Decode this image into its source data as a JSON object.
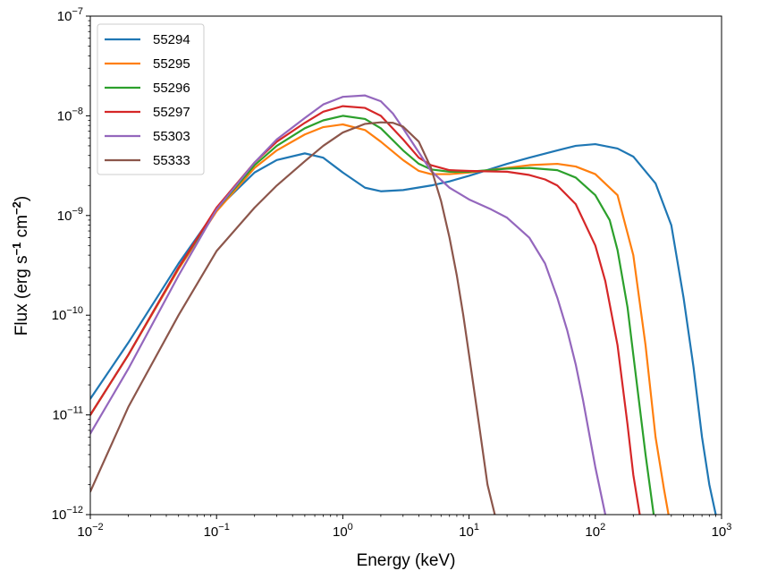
{
  "chart_data": {
    "type": "line",
    "x_scale": "log",
    "y_scale": "log",
    "xlim": [
      0.01,
      1000
    ],
    "ylim": [
      1e-12,
      1e-07
    ],
    "xlabel": "Energy (keV)",
    "ylabel": "Flux (erg s^-1 cm^-2)",
    "ylabel_parts": [
      "Flux (erg s",
      "−1",
      " cm",
      "−2",
      ")"
    ],
    "x_ticks": [
      {
        "value": 0.01,
        "base": "10",
        "exp": "−2"
      },
      {
        "value": 0.1,
        "base": "10",
        "exp": "−1"
      },
      {
        "value": 1,
        "base": "10",
        "exp": "0"
      },
      {
        "value": 10,
        "base": "10",
        "exp": "1"
      },
      {
        "value": 100,
        "base": "10",
        "exp": "2"
      },
      {
        "value": 1000,
        "base": "10",
        "exp": "3"
      }
    ],
    "y_ticks": [
      {
        "value": 1e-12,
        "base": "10",
        "exp": "−12"
      },
      {
        "value": 1e-11,
        "base": "10",
        "exp": "−11"
      },
      {
        "value": 1e-10,
        "base": "10",
        "exp": "−10"
      },
      {
        "value": 1e-09,
        "base": "10",
        "exp": "−9"
      },
      {
        "value": 1e-08,
        "base": "10",
        "exp": "−8"
      },
      {
        "value": 1e-07,
        "base": "10",
        "exp": "−7"
      }
    ],
    "grid": false,
    "legend_position": "top-left",
    "series": [
      {
        "name": "55294",
        "color": "#1f77b4",
        "x": [
          0.01,
          0.02,
          0.05,
          0.1,
          0.2,
          0.3,
          0.5,
          0.7,
          1.0,
          1.5,
          2.0,
          3.0,
          5.0,
          7.0,
          10,
          20,
          30,
          50,
          70,
          100,
          150,
          200,
          300,
          400,
          500,
          600,
          700,
          800,
          900
        ],
        "y": [
          1.45e-11,
          5.3e-11,
          3.3e-10,
          1.15e-09,
          2.7e-09,
          3.6e-09,
          4.2e-09,
          3.8e-09,
          2.7e-09,
          1.9e-09,
          1.75e-09,
          1.8e-09,
          2e-09,
          2.2e-09,
          2.5e-09,
          3.3e-09,
          3.8e-09,
          4.5e-09,
          5e-09,
          5.2e-09,
          4.7e-09,
          3.9e-09,
          2.1e-09,
          8e-10,
          1.5e-10,
          3e-11,
          6e-12,
          2e-12,
          1e-12
        ]
      },
      {
        "name": "55295",
        "color": "#ff7f0e",
        "x": [
          0.01,
          0.02,
          0.05,
          0.1,
          0.2,
          0.3,
          0.5,
          0.7,
          1.0,
          1.5,
          2.0,
          3.0,
          4.0,
          5.0,
          7.0,
          10,
          20,
          30,
          50,
          70,
          100,
          150,
          200,
          250,
          300,
          350,
          380
        ],
        "y": [
          1e-11,
          4e-11,
          2.9e-10,
          1.1e-09,
          3e-09,
          4.5e-09,
          6.5e-09,
          7.7e-09,
          8.2e-09,
          7.2e-09,
          5.5e-09,
          3.6e-09,
          2.8e-09,
          2.6e-09,
          2.6e-09,
          2.7e-09,
          3e-09,
          3.2e-09,
          3.3e-09,
          3.1e-09,
          2.6e-09,
          1.6e-09,
          4e-10,
          5e-11,
          6e-12,
          1.8e-12,
          1e-12
        ]
      },
      {
        "name": "55296",
        "color": "#2ca02c",
        "x": [
          0.01,
          0.02,
          0.05,
          0.1,
          0.2,
          0.3,
          0.5,
          0.7,
          1.0,
          1.5,
          2.0,
          3.0,
          4.0,
          5.0,
          7.0,
          10,
          20,
          30,
          50,
          70,
          100,
          130,
          150,
          180,
          200,
          250,
          290
        ],
        "y": [
          1e-11,
          4e-11,
          3e-10,
          1.15e-09,
          3.2e-09,
          5e-09,
          7.5e-09,
          9e-09,
          1e-08,
          9.3e-09,
          7.5e-09,
          4.5e-09,
          3.3e-09,
          2.9e-09,
          2.75e-09,
          2.75e-09,
          2.95e-09,
          3e-09,
          2.85e-09,
          2.4e-09,
          1.6e-09,
          9e-10,
          4.5e-10,
          1.2e-10,
          4e-11,
          4e-12,
          1e-12
        ]
      },
      {
        "name": "55297",
        "color": "#d62728",
        "x": [
          0.01,
          0.02,
          0.05,
          0.1,
          0.2,
          0.3,
          0.5,
          0.7,
          1.0,
          1.5,
          2.0,
          3.0,
          4.0,
          5.0,
          7.0,
          10,
          20,
          30,
          40,
          50,
          70,
          100,
          120,
          150,
          180,
          200,
          225
        ],
        "y": [
          1e-11,
          4e-11,
          3e-10,
          1.2e-09,
          3.4e-09,
          5.5e-09,
          8.5e-09,
          1.1e-08,
          1.25e-08,
          1.2e-08,
          1e-08,
          5.8e-09,
          3.8e-09,
          3.2e-09,
          2.85e-09,
          2.8e-09,
          2.75e-09,
          2.55e-09,
          2.3e-09,
          2e-09,
          1.3e-09,
          5e-10,
          2.2e-10,
          5e-11,
          8e-12,
          2.5e-12,
          1e-12
        ]
      },
      {
        "name": "55303",
        "color": "#9467bd",
        "x": [
          0.01,
          0.02,
          0.05,
          0.1,
          0.2,
          0.3,
          0.5,
          0.7,
          1.0,
          1.5,
          2.0,
          2.5,
          3.0,
          4.0,
          5.0,
          7.0,
          10,
          15,
          20,
          30,
          40,
          50,
          60,
          70,
          80,
          100,
          120
        ],
        "y": [
          6.5e-12,
          2.9e-11,
          2.5e-10,
          1.15e-09,
          3.4e-09,
          5.8e-09,
          9.5e-09,
          1.3e-08,
          1.55e-08,
          1.6e-08,
          1.4e-08,
          1.05e-08,
          7.5e-09,
          4.3e-09,
          2.8e-09,
          1.9e-09,
          1.45e-09,
          1.15e-09,
          9.5e-10,
          6e-10,
          3.3e-10,
          1.5e-10,
          7e-11,
          3.2e-11,
          1.4e-11,
          3e-12,
          1e-12
        ]
      },
      {
        "name": "55333",
        "color": "#8c564b",
        "x": [
          0.01,
          0.02,
          0.05,
          0.1,
          0.2,
          0.3,
          0.5,
          0.7,
          1.0,
          1.5,
          2.0,
          2.5,
          3.0,
          4.0,
          5.0,
          6.0,
          7.0,
          8.0,
          9.0,
          10,
          12,
          14,
          16
        ],
        "y": [
          1.7e-12,
          1.2e-11,
          1e-10,
          4.4e-10,
          1.2e-09,
          2e-09,
          3.5e-09,
          5e-09,
          6.8e-09,
          8.3e-09,
          8.6e-09,
          8.5e-09,
          7.8e-09,
          5.5e-09,
          3e-09,
          1.4e-09,
          6e-10,
          2.5e-10,
          1e-10,
          4e-11,
          8e-12,
          2e-12,
          1e-12
        ]
      }
    ]
  }
}
